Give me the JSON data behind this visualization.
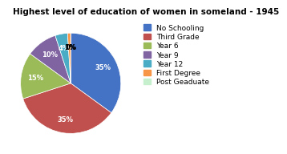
{
  "title": "Highest level of education of women in someland - 1945",
  "labels": [
    "No Schooling",
    "Third Grade",
    "Year 6",
    "Year 9",
    "Year 12",
    "First Degree",
    "Post Geaduate"
  ],
  "values": [
    35,
    35,
    15,
    10,
    4,
    1,
    0
  ],
  "colors": [
    "#4472C4",
    "#C0504D",
    "#9BBB59",
    "#8064A2",
    "#4BACC6",
    "#F79646",
    "#C6EFCE"
  ],
  "background_color": "#FFFFFF",
  "title_fontsize": 7.5,
  "legend_fontsize": 6.5
}
